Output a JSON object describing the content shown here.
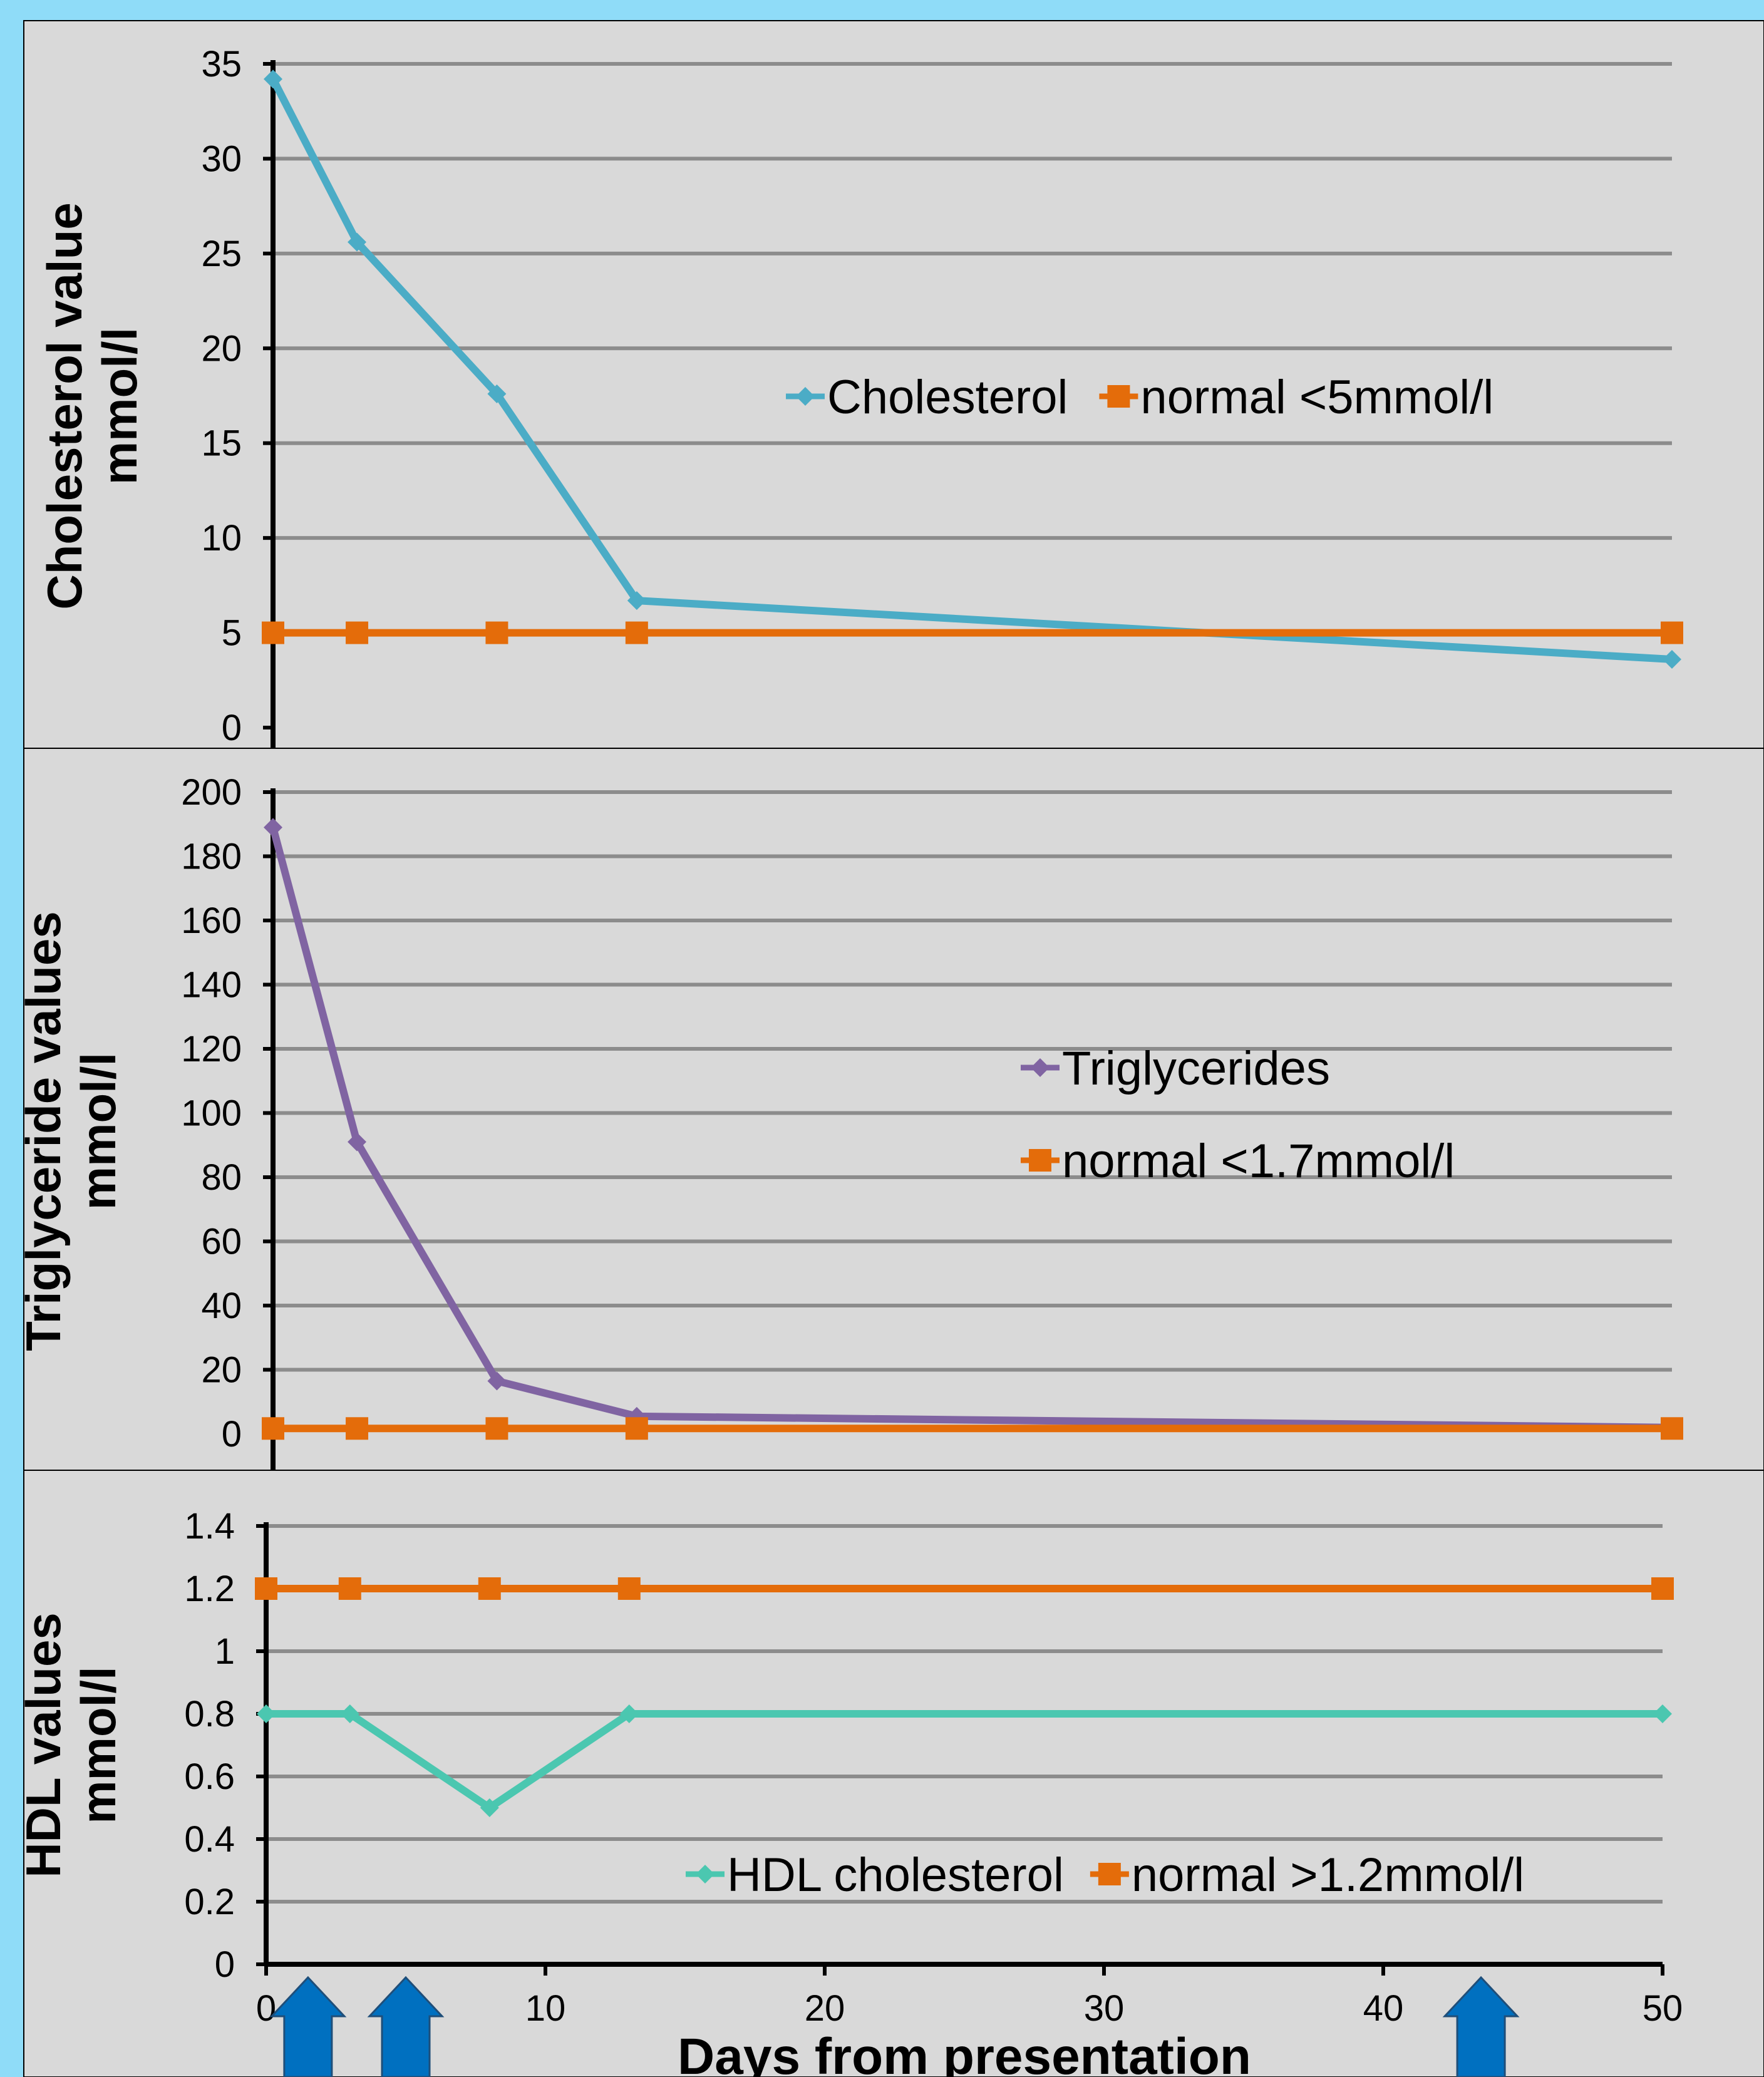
{
  "colors": {
    "background": "#8fdcf8",
    "panel": "#d9d9d9",
    "gridline": "#8c8c8c",
    "axis": "#000000",
    "cholesterol": "#4bacc6",
    "triglycerides": "#8064a2",
    "hdl": "#4bc7b0",
    "normal": "#e46c0a",
    "arrow": "#0070c0"
  },
  "arrow_days": [
    1.5,
    5,
    43.5
  ],
  "chart_data": [
    {
      "type": "line",
      "ylabel": [
        "Cholesterol value",
        "mmol/l"
      ],
      "ylim": [
        0,
        35
      ],
      "yticks": [
        0,
        5,
        10,
        15,
        20,
        25,
        30,
        35
      ],
      "xlim": [
        0,
        50
      ],
      "grid": true,
      "legend_layout": "row",
      "legend": [
        "Cholesterol",
        "normal <5mmol/l"
      ],
      "series": [
        {
          "name": "Cholesterol",
          "marker": "diamond",
          "colorKey": "cholesterol",
          "x": [
            0,
            3,
            8,
            13,
            50
          ],
          "values": [
            34.2,
            25.6,
            17.6,
            6.7,
            3.6
          ]
        },
        {
          "name": "normal <5mmol/l",
          "marker": "square",
          "colorKey": "normal",
          "x": [
            0,
            3,
            8,
            13,
            50
          ],
          "values": [
            5,
            5,
            5,
            5,
            5
          ]
        }
      ]
    },
    {
      "type": "line",
      "ylabel": [
        "Triglyceride values",
        "mmol/l"
      ],
      "ylim": [
        0,
        200
      ],
      "yticks": [
        0,
        20,
        40,
        60,
        80,
        100,
        120,
        140,
        160,
        180,
        200
      ],
      "xlim": [
        0,
        50
      ],
      "grid": true,
      "legend_layout": "column",
      "legend": [
        "Triglycerides",
        "normal <1.7mmol/l"
      ],
      "series": [
        {
          "name": "Triglycerides",
          "marker": "diamond",
          "colorKey": "triglycerides",
          "x": [
            0,
            3,
            8,
            13,
            50
          ],
          "values": [
            189,
            91,
            16.5,
            5.5,
            2
          ]
        },
        {
          "name": "normal <1.7mmol/l",
          "marker": "square",
          "colorKey": "normal",
          "x": [
            0,
            3,
            8,
            13,
            50
          ],
          "values": [
            1.7,
            1.7,
            1.7,
            1.7,
            1.7
          ]
        }
      ]
    },
    {
      "type": "line",
      "ylabel": [
        "HDL values",
        "mmol/l"
      ],
      "xlabel": "Days from presentation",
      "ylim": [
        0,
        1.4
      ],
      "yticks": [
        "0",
        "0.2",
        "0.4",
        "0.6",
        "0.8",
        "1",
        "1.2",
        "1.4"
      ],
      "xlim": [
        0,
        50
      ],
      "xticks": [
        "0",
        "10",
        "20",
        "30",
        "40",
        "50"
      ],
      "grid": true,
      "legend_layout": "row",
      "legend": [
        "HDL cholesterol",
        "normal >1.2mmol/l"
      ],
      "series": [
        {
          "name": "normal >1.2mmol/l",
          "marker": "square",
          "colorKey": "normal",
          "x": [
            0,
            3,
            8,
            13,
            50
          ],
          "values": [
            1.2,
            1.2,
            1.2,
            1.2,
            1.2
          ]
        },
        {
          "name": "HDL cholesterol",
          "marker": "diamond",
          "colorKey": "hdl",
          "x": [
            0,
            3,
            8,
            13,
            50
          ],
          "values": [
            0.8,
            0.8,
            0.5,
            0.8,
            0.8
          ]
        }
      ]
    }
  ]
}
